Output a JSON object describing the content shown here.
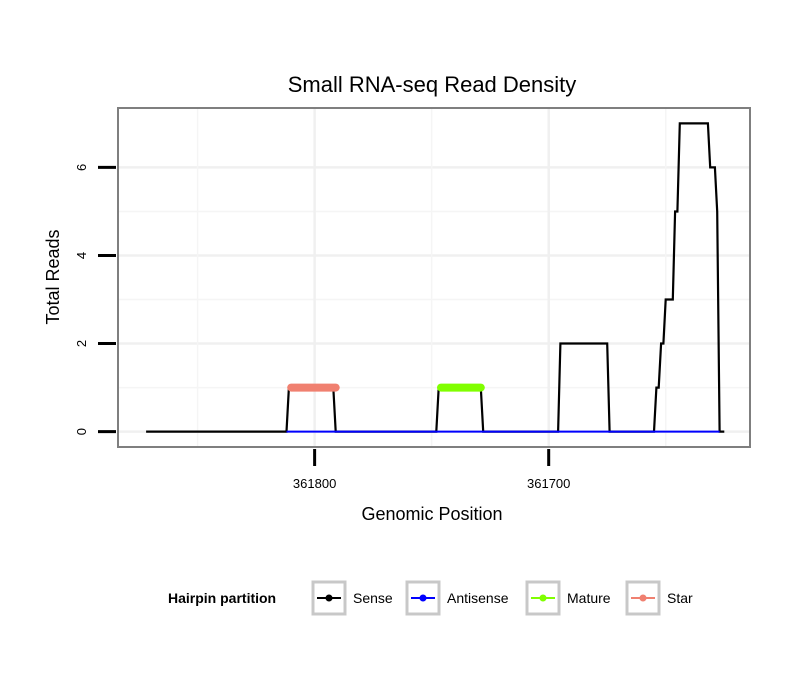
{
  "chart_data": {
    "type": "line",
    "title": "Small RNA-seq Read Density",
    "xlabel": "Genomic Position",
    "ylabel": "Total Reads",
    "xlim": [
      361884,
      361614
    ],
    "ylim": [
      -0.35,
      7.35
    ],
    "x_reversed": true,
    "x_ticks": [
      {
        "value": 361800,
        "label": "361800"
      },
      {
        "value": 361700,
        "label": "361700"
      }
    ],
    "y_ticks": [
      {
        "value": 0,
        "label": "0"
      },
      {
        "value": 2,
        "label": "2"
      },
      {
        "value": 4,
        "label": "4"
      },
      {
        "value": 6,
        "label": "6"
      }
    ],
    "grid": true,
    "legend": {
      "title": "Hairpin partition",
      "position": "bottom"
    },
    "series": [
      {
        "name": "Sense",
        "color": "#000000",
        "points": [
          [
            361872,
            0
          ],
          [
            361812,
            0
          ],
          [
            361811,
            1
          ],
          [
            361792,
            1
          ],
          [
            361791,
            0
          ],
          [
            361748,
            0
          ],
          [
            361747,
            1
          ],
          [
            361729,
            1
          ],
          [
            361728,
            0
          ],
          [
            361696,
            0
          ],
          [
            361695,
            2
          ],
          [
            361675,
            2
          ],
          [
            361674,
            0
          ],
          [
            361655,
            0
          ],
          [
            361654,
            1
          ],
          [
            361653,
            1
          ],
          [
            361652,
            2
          ],
          [
            361651,
            2
          ],
          [
            361650,
            3
          ],
          [
            361647,
            3
          ],
          [
            361646,
            5
          ],
          [
            361645,
            5
          ],
          [
            361644,
            7
          ],
          [
            361632,
            7
          ],
          [
            361631,
            6
          ],
          [
            361629,
            6
          ],
          [
            361628,
            5
          ],
          [
            361627,
            0
          ],
          [
            361625,
            0
          ]
        ]
      },
      {
        "name": "Antisense",
        "color": "#0000ff",
        "points": [
          [
            361812,
            0
          ],
          [
            361627,
            0
          ]
        ]
      },
      {
        "name": "Mature",
        "color": "#80ff00",
        "points": [
          [
            361746,
            1
          ],
          [
            361729,
            1
          ]
        ]
      },
      {
        "name": "Star",
        "color": "#f08070",
        "points": [
          [
            361810,
            1
          ],
          [
            361791,
            1
          ]
        ]
      }
    ]
  }
}
